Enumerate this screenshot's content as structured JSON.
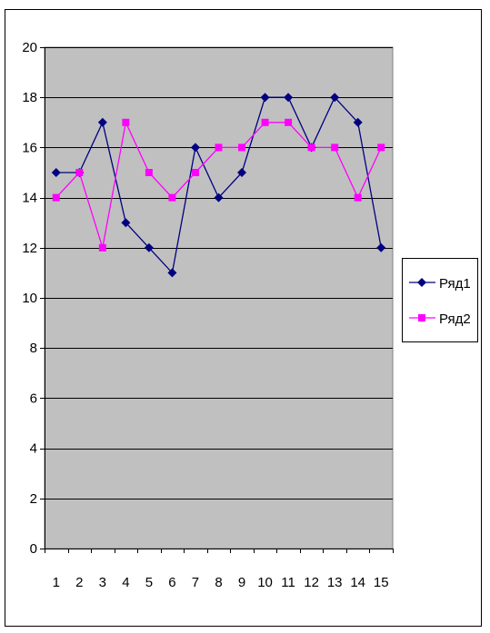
{
  "chart_data": {
    "type": "line",
    "title": "",
    "xlabel": "",
    "ylabel": "",
    "categories": [
      "1",
      "2",
      "3",
      "4",
      "5",
      "6",
      "7",
      "8",
      "9",
      "10",
      "11",
      "12",
      "13",
      "14",
      "15"
    ],
    "y_ticks": [
      "0",
      "2",
      "4",
      "6",
      "8",
      "10",
      "12",
      "14",
      "16",
      "18",
      "20"
    ],
    "ylim": [
      0,
      20
    ],
    "grid": true,
    "plot_background": "#c0c0c0",
    "legend_position": "right",
    "series": [
      {
        "name": "Ряд1",
        "color": "#000080",
        "marker": "diamond",
        "values": [
          15,
          15,
          17,
          13,
          12,
          11,
          16,
          14,
          15,
          18,
          18,
          16,
          18,
          17,
          12
        ]
      },
      {
        "name": "Ряд2",
        "color": "#ff00ff",
        "marker": "square",
        "values": [
          14,
          15,
          12,
          17,
          15,
          14,
          15,
          16,
          16,
          17,
          17,
          16,
          16,
          14,
          16
        ]
      }
    ]
  }
}
